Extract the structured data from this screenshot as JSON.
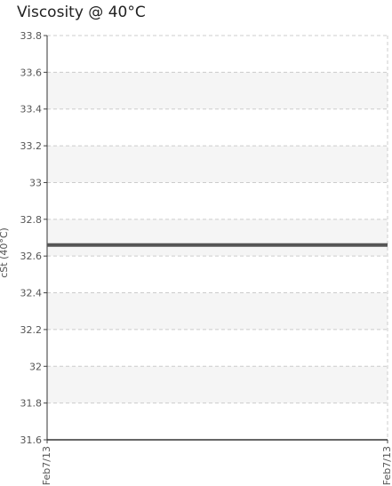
{
  "chart_data": {
    "type": "line",
    "title": "Viscosity @ 40°C",
    "ylabel": "cSt (40°C)",
    "xlabel": "",
    "x": [
      "Feb7/13",
      "Feb7/13"
    ],
    "series": [
      {
        "values": [
          32.66,
          32.66
        ],
        "color": "#555555"
      }
    ],
    "ylim": [
      31.6,
      33.8
    ],
    "yticks": [
      31.6,
      31.8,
      32,
      32.2,
      32.4,
      32.6,
      32.8,
      33,
      33.2,
      33.4,
      33.6,
      33.8
    ],
    "grid": true,
    "legend": "none"
  }
}
